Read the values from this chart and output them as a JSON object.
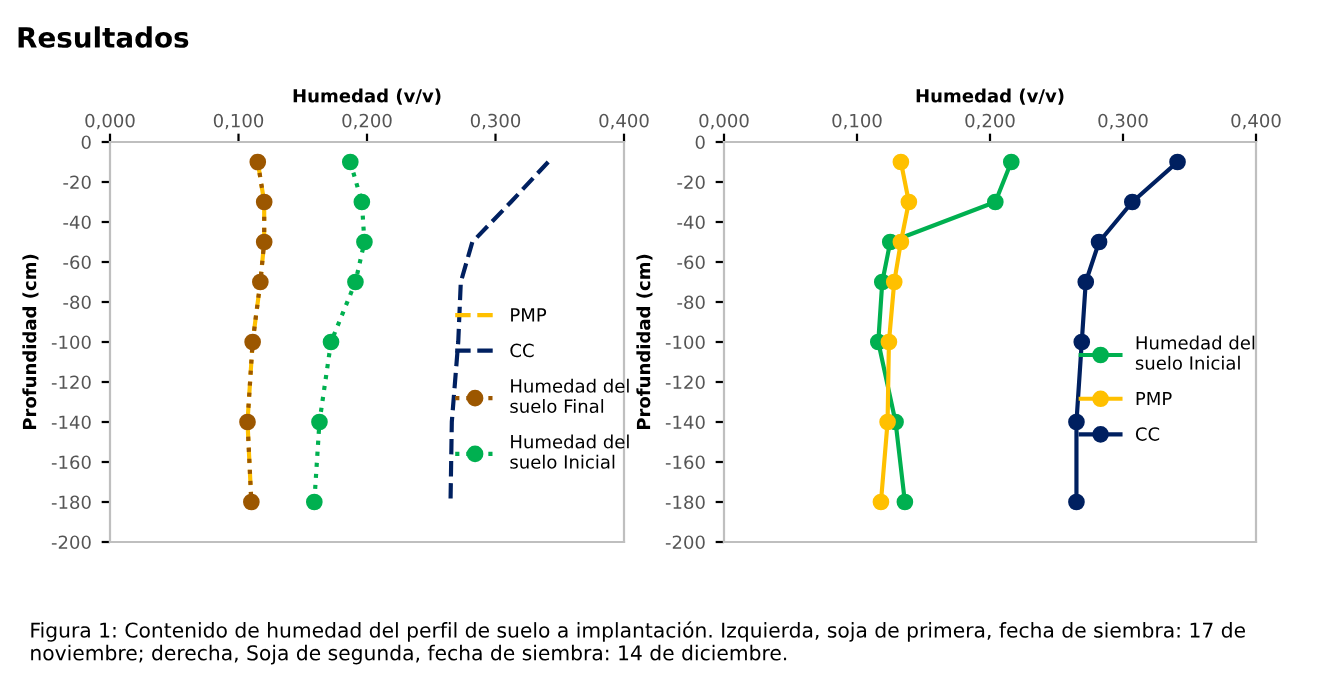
{
  "chart_data": [
    {
      "type": "line",
      "xlabel": "Humedad (v/v)",
      "ylabel": "Profundidad (cm)",
      "annotations": [
        "Resultados",
        "Figura 1: Contenido de humedad del perfil de suelo a implantación. Izquierda, soja de primera, fecha de siembra: 17 de noviembre; derecha, Soja de segunda, fecha de siembra: 14 de diciembre."
      ],
      "xlim": [
        0,
        0.4
      ],
      "xticks": [
        {
          "value": 0,
          "label": "0,000"
        },
        {
          "value": 0.1,
          "label": "0,100"
        },
        {
          "value": 0.2,
          "label": "0,200"
        },
        {
          "value": 0.3,
          "label": "0,300"
        },
        {
          "value": 0.4,
          "label": "0,400"
        }
      ],
      "ylim": [
        -200,
        0
      ],
      "yticks": [
        0,
        -20,
        -40,
        -60,
        -80,
        -100,
        -120,
        -140,
        -160,
        -180,
        -200
      ],
      "grid": false,
      "legend": "right",
      "series": [
        {
          "name": "PMP",
          "color": "#ffc000",
          "marker": "none",
          "line_style": "dashed",
          "x": [
            0.115,
            0.12,
            0.12,
            0.117,
            0.111,
            0.107,
            0.11
          ],
          "values": [
            -10,
            -30,
            -50,
            -70,
            -100,
            -140,
            -180
          ]
        },
        {
          "name": "CC",
          "color": "#002060",
          "marker": "none",
          "line_style": "dashed",
          "x": [
            0.341,
            0.312,
            0.282,
            0.273,
            0.271,
            0.266,
            0.265
          ],
          "values": [
            -10,
            -30,
            -50,
            -70,
            -100,
            -140,
            -180
          ]
        },
        {
          "name": "Humedad del suelo Final",
          "color": "#9c5700",
          "marker": "circle",
          "line_style": "dotted",
          "x": [
            0.115,
            0.12,
            0.12,
            0.117,
            0.111,
            0.107,
            0.11
          ],
          "values": [
            -10,
            -30,
            -50,
            -70,
            -100,
            -140,
            -180
          ]
        },
        {
          "name": "Humedad del suelo Inicial",
          "color": "#00b050",
          "marker": "circle",
          "line_style": "dotted",
          "x": [
            0.187,
            0.196,
            0.198,
            0.191,
            0.172,
            0.163,
            0.159
          ],
          "values": [
            -10,
            -30,
            -50,
            -70,
            -100,
            -140,
            -180
          ]
        }
      ]
    },
    {
      "type": "line",
      "xlabel": "Humedad (v/v)",
      "ylabel": "Profundidad (cm)",
      "xlim": [
        0,
        0.4
      ],
      "xticks": [
        {
          "value": 0,
          "label": "0,000"
        },
        {
          "value": 0.1,
          "label": "0,100"
        },
        {
          "value": 0.2,
          "label": "0,200"
        },
        {
          "value": 0.3,
          "label": "0,300"
        },
        {
          "value": 0.4,
          "label": "0,400"
        }
      ],
      "ylim": [
        -200,
        0
      ],
      "yticks": [
        0,
        -20,
        -40,
        -60,
        -80,
        -100,
        -120,
        -140,
        -160,
        -180,
        -200
      ],
      "grid": false,
      "legend": "right",
      "series": [
        {
          "name": "Humedad del suelo Inicial",
          "color": "#00b050",
          "marker": "circle",
          "line_style": "solid",
          "x": [
            0.216,
            0.204,
            0.125,
            0.119,
            0.116,
            0.129,
            0.136
          ],
          "values": [
            -10,
            -30,
            -50,
            -70,
            -100,
            -140,
            -180
          ]
        },
        {
          "name": "PMP",
          "color": "#ffc000",
          "marker": "circle",
          "line_style": "solid",
          "x": [
            0.133,
            0.139,
            0.133,
            0.128,
            0.124,
            0.123,
            0.118
          ],
          "values": [
            -10,
            -30,
            -50,
            -70,
            -100,
            -140,
            -180
          ]
        },
        {
          "name": "CC",
          "color": "#002060",
          "marker": "circle",
          "line_style": "solid",
          "x": [
            0.341,
            0.307,
            0.282,
            0.272,
            0.269,
            0.265,
            0.265
          ],
          "values": [
            -10,
            -30,
            -50,
            -70,
            -100,
            -140,
            -180
          ]
        }
      ]
    }
  ]
}
